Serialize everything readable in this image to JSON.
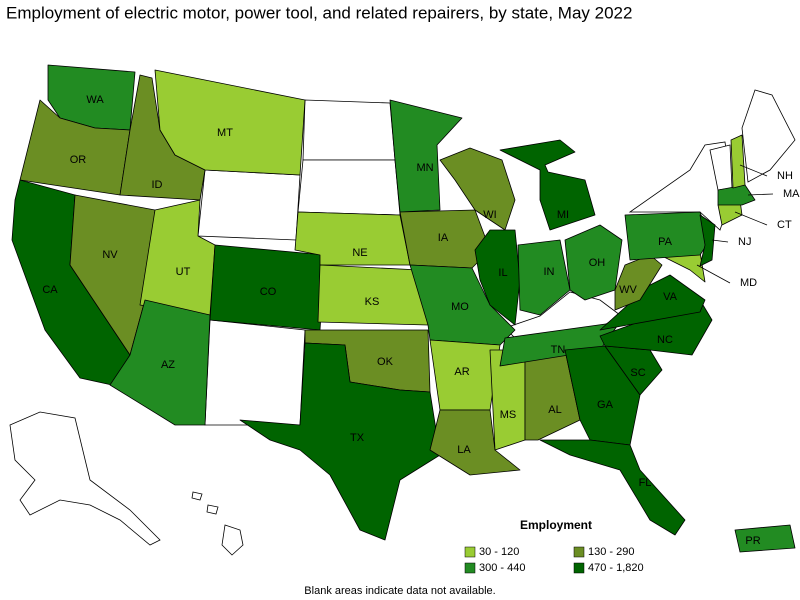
{
  "title": "Employment of electric motor, power tool, and related repairers, by state, May 2022",
  "legend": {
    "title": "Employment",
    "items": [
      {
        "label": "30 - 120",
        "color": "#99cc33"
      },
      {
        "label": "130 - 290",
        "color": "#6b8e23"
      },
      {
        "label": "300 - 440",
        "color": "#228b22"
      },
      {
        "label": "470 - 1,820",
        "color": "#006400"
      }
    ]
  },
  "states": [
    {
      "label": "WA",
      "color": "#228b22"
    },
    {
      "label": "OR",
      "color": "#6b8e23"
    },
    {
      "label": "CA",
      "color": "#006400"
    },
    {
      "label": "NV",
      "color": "#6b8e23"
    },
    {
      "label": "ID",
      "color": "#6b8e23"
    },
    {
      "label": "MT",
      "color": "#99cc33"
    },
    {
      "label": "UT",
      "color": "#99cc33"
    },
    {
      "label": "AZ",
      "color": "#228b22"
    },
    {
      "label": "CO",
      "color": "#006400"
    },
    {
      "label": "NE",
      "color": "#99cc33"
    },
    {
      "label": "KS",
      "color": "#99cc33"
    },
    {
      "label": "OK",
      "color": "#6b8e23"
    },
    {
      "label": "TX",
      "color": "#006400"
    },
    {
      "label": "MN",
      "color": "#228b22"
    },
    {
      "label": "IA",
      "color": "#6b8e23"
    },
    {
      "label": "WI",
      "color": "#6b8e23"
    },
    {
      "label": "MO",
      "color": "#228b22"
    },
    {
      "label": "AR",
      "color": "#99cc33"
    },
    {
      "label": "LA",
      "color": "#6b8e23"
    },
    {
      "label": "MS",
      "color": "#99cc33"
    },
    {
      "label": "AL",
      "color": "#6b8e23"
    },
    {
      "label": "IL",
      "color": "#006400"
    },
    {
      "label": "IN",
      "color": "#228b22"
    },
    {
      "label": "OH",
      "color": "#228b22"
    },
    {
      "label": "MI",
      "color": "#006400"
    },
    {
      "label": "TN",
      "color": "#228b22"
    },
    {
      "label": "GA",
      "color": "#006400"
    },
    {
      "label": "FL",
      "color": "#006400"
    },
    {
      "label": "SC",
      "color": "#006400"
    },
    {
      "label": "NC",
      "color": "#006400"
    },
    {
      "label": "VA",
      "color": "#006400"
    },
    {
      "label": "WV",
      "color": "#6b8e23"
    },
    {
      "label": "MD",
      "color": "#99cc33"
    },
    {
      "label": "PA",
      "color": "#228b22"
    },
    {
      "label": "NJ",
      "color": "#006400"
    },
    {
      "label": "CT",
      "color": "#99cc33"
    },
    {
      "label": "MA",
      "color": "#228b22"
    },
    {
      "label": "NH",
      "color": "#99cc33"
    },
    {
      "label": "PR",
      "color": "#228b22"
    }
  ],
  "footnote": "Blank areas indicate data not available."
}
